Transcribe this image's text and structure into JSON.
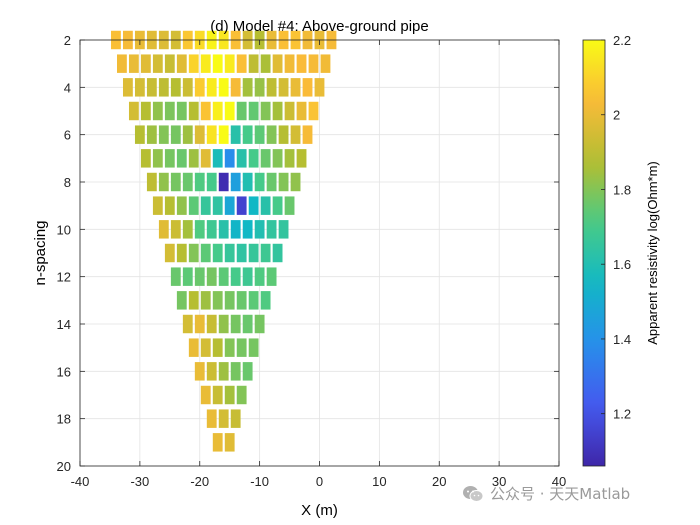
{
  "chart_data": {
    "type": "heatmap",
    "title": "(d) Model #4: Above-ground pipe",
    "xlabel": "X (m)",
    "ylabel": "n-spacing",
    "xlim": [
      -40,
      40
    ],
    "ylim": [
      2,
      20
    ],
    "y_reversed": true,
    "grid": true,
    "xticks": [
      -40,
      -30,
      -20,
      -10,
      0,
      10,
      20,
      30,
      40
    ],
    "yticks": [
      2,
      4,
      6,
      8,
      10,
      12,
      14,
      16,
      18,
      20
    ],
    "x_spacing": 2,
    "rows": [
      {
        "n": 2,
        "x_start": -34,
        "values": [
          2.05,
          2.03,
          2.0,
          1.98,
          1.97,
          1.95,
          2.07,
          2.12,
          2.18,
          2.15,
          2.05,
          1.95,
          1.88,
          2.0,
          2.05,
          2.06,
          2.02,
          2.0,
          2.03
        ]
      },
      {
        "n": 3,
        "x_start": -33,
        "values": [
          2.02,
          2.0,
          1.98,
          1.95,
          1.92,
          1.98,
          2.1,
          2.16,
          2.2,
          2.16,
          2.05,
          1.9,
          1.86,
          1.98,
          2.02,
          2.04,
          2.03,
          2.02
        ]
      },
      {
        "n": 4,
        "x_start": -32,
        "values": [
          1.97,
          1.95,
          1.92,
          1.9,
          1.88,
          1.93,
          2.08,
          2.16,
          2.2,
          2.03,
          1.85,
          1.83,
          1.9,
          1.95,
          2.0,
          2.04,
          2.0
        ]
      },
      {
        "n": 5,
        "x_start": -31,
        "values": [
          1.95,
          1.88,
          1.82,
          1.79,
          1.78,
          1.88,
          2.06,
          2.17,
          2.2,
          1.76,
          1.75,
          1.8,
          1.85,
          1.93,
          2.0,
          2.06
        ]
      },
      {
        "n": 6,
        "x_start": -30,
        "values": [
          1.88,
          1.84,
          1.8,
          1.78,
          1.84,
          1.97,
          2.14,
          2.2,
          1.62,
          1.7,
          1.74,
          1.8,
          1.88,
          1.95,
          2.03
        ]
      },
      {
        "n": 7,
        "x_start": -29,
        "values": [
          1.88,
          1.82,
          1.78,
          1.76,
          1.84,
          1.98,
          1.58,
          1.38,
          1.62,
          1.7,
          1.76,
          1.8,
          1.85,
          1.88
        ]
      },
      {
        "n": 8,
        "x_start": -28,
        "values": [
          1.9,
          1.82,
          1.78,
          1.76,
          1.72,
          1.7,
          1.08,
          1.45,
          1.6,
          1.7,
          1.76,
          1.8,
          1.82
        ]
      },
      {
        "n": 9,
        "x_start": -27,
        "values": [
          1.93,
          1.88,
          1.82,
          1.74,
          1.66,
          1.64,
          1.48,
          1.15,
          1.55,
          1.62,
          1.7,
          1.76
        ]
      },
      {
        "n": 10,
        "x_start": -26,
        "values": [
          1.98,
          1.93,
          1.85,
          1.72,
          1.68,
          1.62,
          1.54,
          1.55,
          1.6,
          1.65,
          1.65
        ]
      },
      {
        "n": 11,
        "x_start": -25,
        "values": [
          1.95,
          1.88,
          1.8,
          1.74,
          1.7,
          1.66,
          1.64,
          1.66,
          1.68,
          1.65
        ]
      },
      {
        "n": 12,
        "x_start": -24,
        "values": [
          1.76,
          1.74,
          1.76,
          1.78,
          1.74,
          1.7,
          1.68,
          1.72,
          1.74
        ]
      },
      {
        "n": 13,
        "x_start": -23,
        "values": [
          1.78,
          1.88,
          1.84,
          1.8,
          1.78,
          1.76,
          1.74,
          1.72
        ]
      },
      {
        "n": 14,
        "x_start": -22,
        "values": [
          1.95,
          2.0,
          1.92,
          1.82,
          1.78,
          1.76,
          1.78
        ]
      },
      {
        "n": 15,
        "x_start": -21,
        "values": [
          2.0,
          1.95,
          1.88,
          1.8,
          1.78,
          1.78
        ]
      },
      {
        "n": 16,
        "x_start": -20,
        "values": [
          2.0,
          1.93,
          1.84,
          1.78,
          1.76
        ]
      },
      {
        "n": 17,
        "x_start": -19,
        "values": [
          2.0,
          1.92,
          1.85,
          1.8
        ]
      },
      {
        "n": 18,
        "x_start": -18,
        "values": [
          2.0,
          1.95,
          1.92
        ]
      },
      {
        "n": 19,
        "x_start": -17,
        "values": [
          2.0,
          1.98
        ]
      }
    ],
    "colorbar": {
      "label": "Apparent resistivity log(Ohm*m)",
      "min": 1.06,
      "max": 2.2,
      "ticks": [
        1.2,
        1.4,
        1.6,
        1.8,
        2,
        2.2
      ],
      "colormap": "parula"
    }
  },
  "watermark": {
    "text": "公众号 · 天天Matlab",
    "icon": "wechat-icon"
  }
}
